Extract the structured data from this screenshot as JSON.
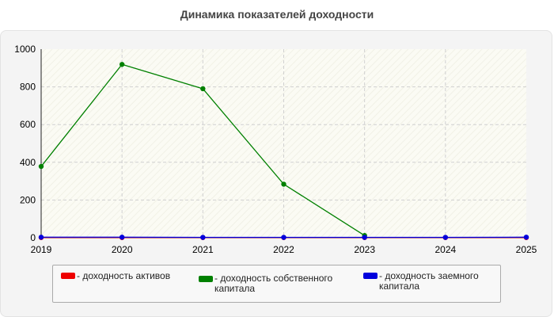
{
  "chart_data": {
    "type": "line",
    "title": "Динамика показателей доходности",
    "x": [
      "2019",
      "2020",
      "2021",
      "2022",
      "2023",
      "2024",
      "2025"
    ],
    "series": [
      {
        "name": "- доходность активов",
        "color": "#ee0000",
        "values": [
          1,
          1,
          1,
          1,
          1,
          1,
          1
        ]
      },
      {
        "name": "- доходность собственного капитала",
        "color": "#008000",
        "values": [
          378,
          919,
          790,
          284,
          12,
          null,
          null
        ]
      },
      {
        "name": "- доходность заемного капитала",
        "color": "#0000dd",
        "values": [
          3,
          3,
          2,
          2,
          2,
          2,
          3
        ]
      }
    ],
    "y_ticks": [
      "0",
      "200",
      "400",
      "600",
      "800",
      "1000"
    ],
    "ylim": [
      0,
      1000
    ],
    "grid": true,
    "legend_position": "bottom"
  }
}
